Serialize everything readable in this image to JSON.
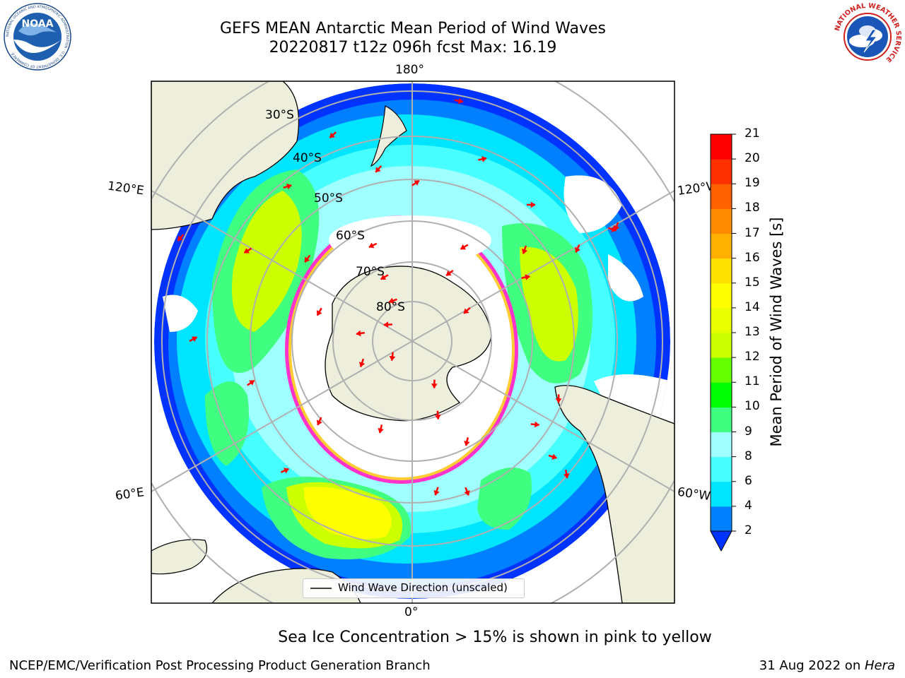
{
  "header": {
    "title_line1": "GEFS MEAN Antarctic Mean Period of Wind Waves",
    "title_line2": "20220817 t12z 096h fcst   Max: 16.19"
  },
  "logos": {
    "noaa_text": "NOAA",
    "noaa_ring_text": "NATIONAL OCEANIC AND ATMOSPHERIC ADMINISTRATION · U.S. DEPARTMENT OF COMMERCE",
    "nws_ring_text": "NATIONAL WEATHER SERVICE"
  },
  "map": {
    "longitude_labels": {
      "top": "180°",
      "bottom": "0°",
      "upper_left": "120°E",
      "lower_left": "60°E",
      "upper_right": "120°W",
      "lower_right": "60°W"
    },
    "latitude_labels": [
      "30°S",
      "40°S",
      "50°S",
      "60°S",
      "70°S",
      "80°S"
    ],
    "legend_label": "Wind Wave Direction (unscaled)",
    "arrow_color": "#ff0000",
    "land_color": "#eeeedc",
    "ice_edge_colors": [
      "#ff33cc",
      "#ffcc33"
    ]
  },
  "colorbar": {
    "label": "Mean Period of Wind Waves [s]",
    "ticks": [
      "2",
      "4",
      "6",
      "8",
      "9",
      "10",
      "11",
      "12",
      "13",
      "14",
      "15",
      "16",
      "17",
      "18",
      "19",
      "20",
      "21"
    ],
    "colors": [
      "#0033ff",
      "#0080ff",
      "#00e5ff",
      "#48ffff",
      "#a0ffff",
      "#40ff80",
      "#00ff00",
      "#66ff00",
      "#ccff00",
      "#e8ff00",
      "#ffff00",
      "#ffe000",
      "#ffb000",
      "#ff8c00",
      "#ff6000",
      "#ff3000",
      "#ff0000"
    ]
  },
  "notes": {
    "sea_ice": "Sea Ice Concentration > 15% is shown in pink to yellow"
  },
  "footer": {
    "left": "NCEP/EMC/Verification Post Processing Product Generation Branch",
    "right_date": "31 Aug 2022 on ",
    "right_host": "Hera"
  }
}
